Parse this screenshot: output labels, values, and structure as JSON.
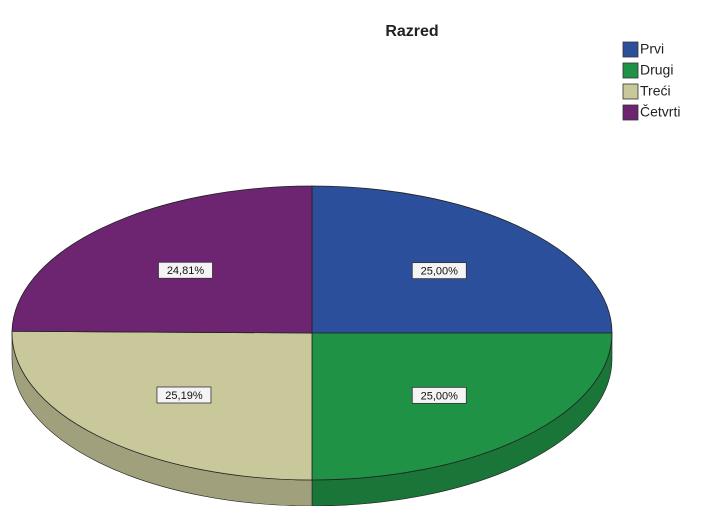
{
  "chart_data": {
    "type": "pie",
    "title": "Razred",
    "categories": [
      "Prvi",
      "Drugi",
      "Treći",
      "Četvrti"
    ],
    "values": [
      25.0,
      25.0,
      25.19,
      24.81
    ],
    "value_labels": [
      "25,00%",
      "25,00%",
      "25,19%",
      "24,81%"
    ],
    "colors": [
      "#2c4f9b",
      "#1f9246",
      "#c9c89b",
      "#6d2471"
    ],
    "legend": "top-right"
  }
}
